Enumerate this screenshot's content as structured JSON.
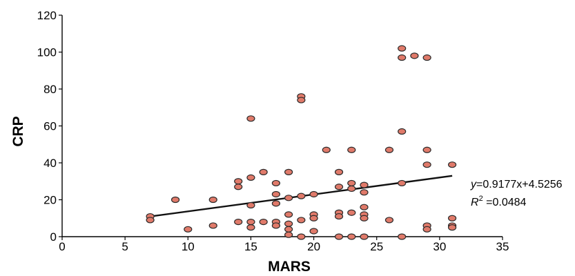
{
  "chart_data": {
    "type": "scatter",
    "title": "",
    "xlabel": "MARS",
    "ylabel": "CRP",
    "xlim": [
      0,
      35
    ],
    "ylim": [
      0,
      120
    ],
    "x_ticks": [
      0,
      5,
      10,
      15,
      20,
      25,
      30,
      35
    ],
    "y_ticks": [
      0,
      20,
      40,
      60,
      80,
      100,
      120
    ],
    "grid": false,
    "marker_color": "#e07a6a",
    "marker_edge_color": "#2a2a2a",
    "line_color": "#111111",
    "points": [
      {
        "x": 7,
        "y": 11
      },
      {
        "x": 7,
        "y": 9
      },
      {
        "x": 9,
        "y": 20
      },
      {
        "x": 10,
        "y": 4
      },
      {
        "x": 12,
        "y": 20
      },
      {
        "x": 12,
        "y": 6
      },
      {
        "x": 14,
        "y": 30
      },
      {
        "x": 14,
        "y": 27
      },
      {
        "x": 14,
        "y": 8
      },
      {
        "x": 15,
        "y": 64
      },
      {
        "x": 15,
        "y": 32
      },
      {
        "x": 15,
        "y": 17
      },
      {
        "x": 15,
        "y": 8
      },
      {
        "x": 15,
        "y": 5
      },
      {
        "x": 16,
        "y": 35
      },
      {
        "x": 16,
        "y": 8
      },
      {
        "x": 17,
        "y": 29
      },
      {
        "x": 17,
        "y": 23
      },
      {
        "x": 17,
        "y": 18
      },
      {
        "x": 17,
        "y": 8
      },
      {
        "x": 17,
        "y": 6
      },
      {
        "x": 18,
        "y": 35
      },
      {
        "x": 18,
        "y": 21
      },
      {
        "x": 18,
        "y": 12
      },
      {
        "x": 18,
        "y": 7
      },
      {
        "x": 18,
        "y": 4
      },
      {
        "x": 18,
        "y": 1
      },
      {
        "x": 19,
        "y": 76
      },
      {
        "x": 19,
        "y": 74
      },
      {
        "x": 19,
        "y": 22
      },
      {
        "x": 19,
        "y": 9
      },
      {
        "x": 19,
        "y": 0
      },
      {
        "x": 20,
        "y": 23
      },
      {
        "x": 20,
        "y": 12
      },
      {
        "x": 20,
        "y": 10
      },
      {
        "x": 20,
        "y": 3
      },
      {
        "x": 21,
        "y": 47
      },
      {
        "x": 22,
        "y": 35
      },
      {
        "x": 22,
        "y": 27
      },
      {
        "x": 22,
        "y": 13
      },
      {
        "x": 22,
        "y": 11
      },
      {
        "x": 22,
        "y": 0
      },
      {
        "x": 23,
        "y": 47
      },
      {
        "x": 23,
        "y": 29
      },
      {
        "x": 23,
        "y": 26
      },
      {
        "x": 23,
        "y": 13
      },
      {
        "x": 23,
        "y": 0
      },
      {
        "x": 24,
        "y": 28
      },
      {
        "x": 24,
        "y": 24
      },
      {
        "x": 24,
        "y": 16
      },
      {
        "x": 24,
        "y": 12
      },
      {
        "x": 24,
        "y": 10
      },
      {
        "x": 24,
        "y": 0
      },
      {
        "x": 26,
        "y": 47
      },
      {
        "x": 26,
        "y": 9
      },
      {
        "x": 27,
        "y": 102
      },
      {
        "x": 27,
        "y": 97
      },
      {
        "x": 27,
        "y": 57
      },
      {
        "x": 27,
        "y": 29
      },
      {
        "x": 27,
        "y": 0
      },
      {
        "x": 28,
        "y": 98
      },
      {
        "x": 29,
        "y": 97
      },
      {
        "x": 29,
        "y": 47
      },
      {
        "x": 29,
        "y": 39
      },
      {
        "x": 29,
        "y": 6
      },
      {
        "x": 29,
        "y": 4
      },
      {
        "x": 31,
        "y": 39
      },
      {
        "x": 31,
        "y": 10
      },
      {
        "x": 31,
        "y": 6
      },
      {
        "x": 31,
        "y": 5
      }
    ],
    "trendline": {
      "slope": 0.9177,
      "intercept": 4.5256,
      "x_range": [
        7,
        31
      ]
    },
    "annotations": {
      "equation": "y=0.9177x+4.5256",
      "r_squared": "R2 =0.0484"
    }
  }
}
